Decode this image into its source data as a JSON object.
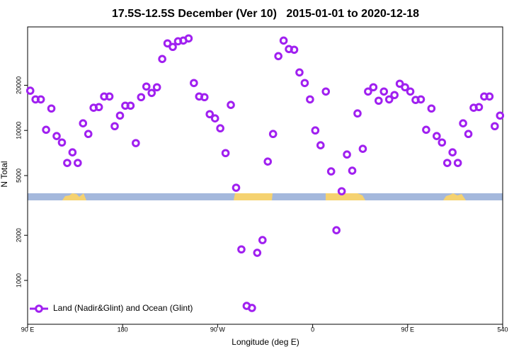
{
  "chart_data": {
    "type": "scatter",
    "title": "17.5S-12.5S December (Ver 10)   2015-01-01 to 2020-12-18",
    "x_label": "Longitude (deg E)",
    "y_label": "N Total",
    "xlim": [
      90,
      540
    ],
    "ylim": [
      510,
      49000
    ],
    "ylog": true,
    "xticks": [
      {
        "value": 90,
        "label": "90 E"
      },
      180,
      {
        "value": 270,
        "label": "90 W"
      },
      {
        "value": 360,
        "label": "0"
      },
      {
        "value": 450,
        "label": "90 E"
      },
      540
    ],
    "yticks": [
      1000,
      2000,
      5000,
      10000,
      20000
    ],
    "legend": "bottom-left",
    "series": [
      {
        "name": "Land (Nadir&Glint) and Ocean (Glint)",
        "color": "#a020f0",
        "x": [
          92.5,
          97.5,
          102.5,
          107.5,
          112.5,
          117.5,
          122.5,
          127.5,
          132.5,
          137.5,
          142.5,
          147.5,
          152.5,
          157.5,
          162.5,
          167.5,
          172.5,
          177.5,
          182.5,
          187.5,
          192.5,
          197.5,
          202.5,
          207.5,
          212.5,
          217.5,
          222.5,
          227.5,
          232.5,
          237.5,
          242.5,
          247.5,
          252.5,
          257.5,
          262.5,
          267.5,
          272.5,
          277.5,
          282.5,
          287.5,
          292.5,
          297.5,
          302.5,
          307.5,
          312.5,
          317.5,
          322.5,
          327.5,
          332.5,
          337.5,
          342.5,
          347.5,
          352.5,
          357.5,
          362.5,
          367.5,
          372.5,
          377.5,
          382.5,
          387.5,
          392.5,
          397.5,
          402.5,
          407.5,
          412.5,
          417.5,
          422.5,
          427.5,
          432.5,
          437.5,
          442.5,
          447.5,
          452.5,
          457.5,
          462.5,
          467.5,
          472.5,
          477.5,
          482.5,
          487.5,
          492.5,
          497.5,
          502.5,
          507.5,
          512.5,
          517.5,
          522.5,
          527.5,
          532.5,
          537.5
        ],
        "values": [
          18400,
          16100,
          16100,
          10100,
          14000,
          9170,
          8310,
          6070,
          7140,
          6070,
          11150,
          9470,
          14160,
          14310,
          16840,
          16840,
          10670,
          12560,
          14620,
          14620,
          8230,
          16660,
          19610,
          17780,
          19400,
          29940,
          38050,
          36040,
          39290,
          39720,
          41060,
          20700,
          16840,
          16660,
          12830,
          12030,
          10330,
          7060,
          14790,
          4150,
          1610,
          676,
          655,
          1528,
          1857,
          6200,
          9470,
          31280,
          39720,
          34860,
          34500,
          24360,
          20700,
          16100,
          10000,
          7960,
          18170,
          5330,
          2160,
          3930,
          6910,
          5390,
          12980,
          7540,
          18170,
          19400,
          15780,
          18170,
          16100,
          17210,
          20480,
          19400,
          18170,
          15960,
          16100,
          10100,
          14000,
          9170,
          8310,
          6070,
          7140,
          6070,
          11150,
          9470,
          14160,
          14310,
          16840,
          16840,
          10670,
          12560
        ]
      }
    ]
  }
}
